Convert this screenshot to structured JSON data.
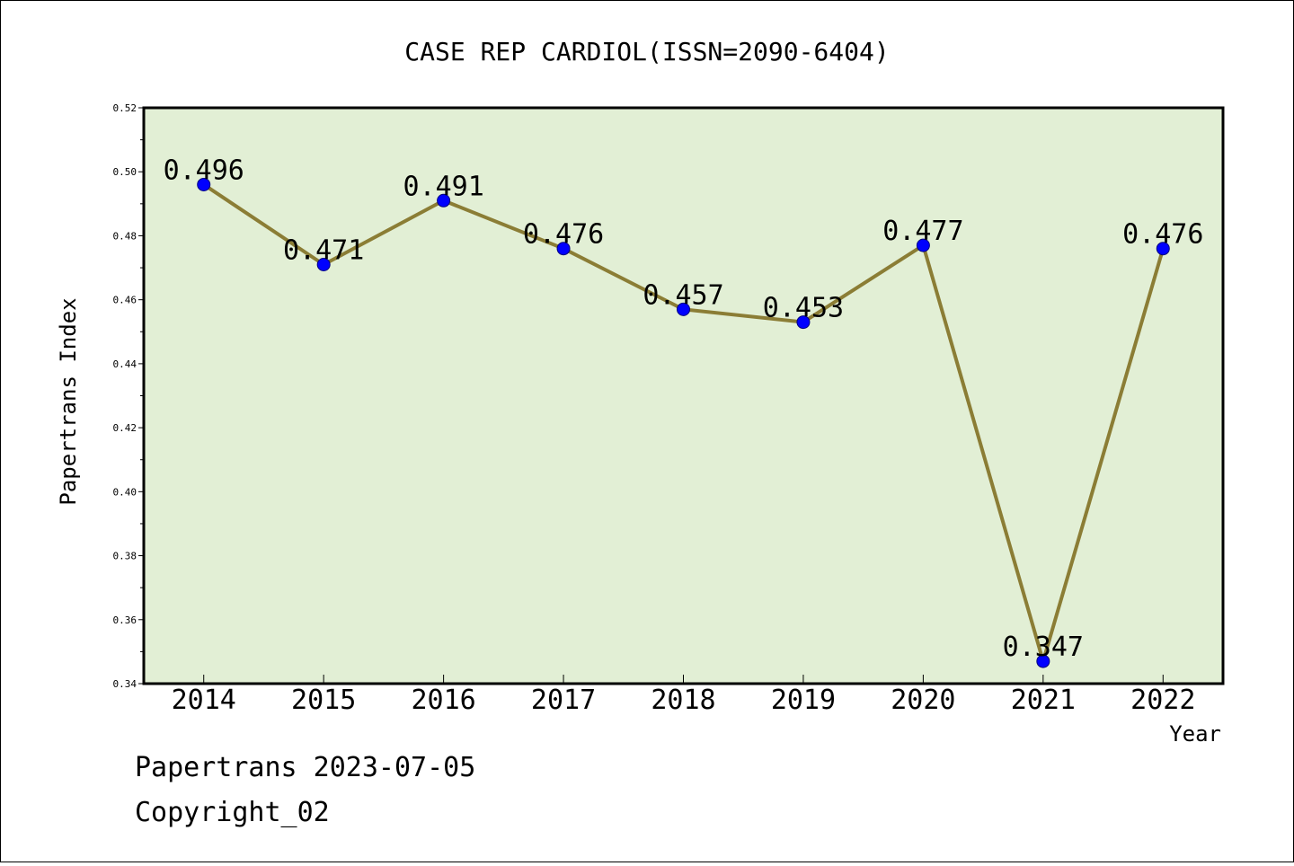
{
  "chart_data": {
    "type": "line",
    "title": "CASE REP CARDIOL(ISSN=2090-6404)",
    "xlabel": "Year",
    "ylabel": "Papertrans Index",
    "categories": [
      "2014",
      "2015",
      "2016",
      "2017",
      "2018",
      "2019",
      "2020",
      "2021",
      "2022"
    ],
    "series": [
      {
        "values": [
          0.496,
          0.471,
          0.491,
          0.476,
          0.457,
          0.453,
          0.477,
          0.347,
          0.476
        ],
        "data_labels": [
          "0.496",
          "0.471",
          "0.491",
          "0.476",
          "0.457",
          "0.453",
          "0.477",
          "0.347",
          "0.476"
        ]
      }
    ],
    "ylim": [
      0.34,
      0.52
    ],
    "yticks": [
      0.34,
      0.36,
      0.38,
      0.4,
      0.42,
      0.44,
      0.46,
      0.48,
      0.5,
      0.52
    ],
    "ytick_labels": [
      "0.34",
      "0.36",
      "0.38",
      "0.40",
      "0.42",
      "0.44",
      "0.46",
      "0.48",
      "0.50",
      "0.52"
    ],
    "grid": false,
    "legend": "none",
    "colors": {
      "plot_background": "#e2efd5",
      "line": "#8b7d35",
      "marker": "#0000ff",
      "frame": "#000000"
    }
  },
  "footer": {
    "line1": "Papertrans 2023-07-05",
    "line2": "Copyright_02"
  }
}
